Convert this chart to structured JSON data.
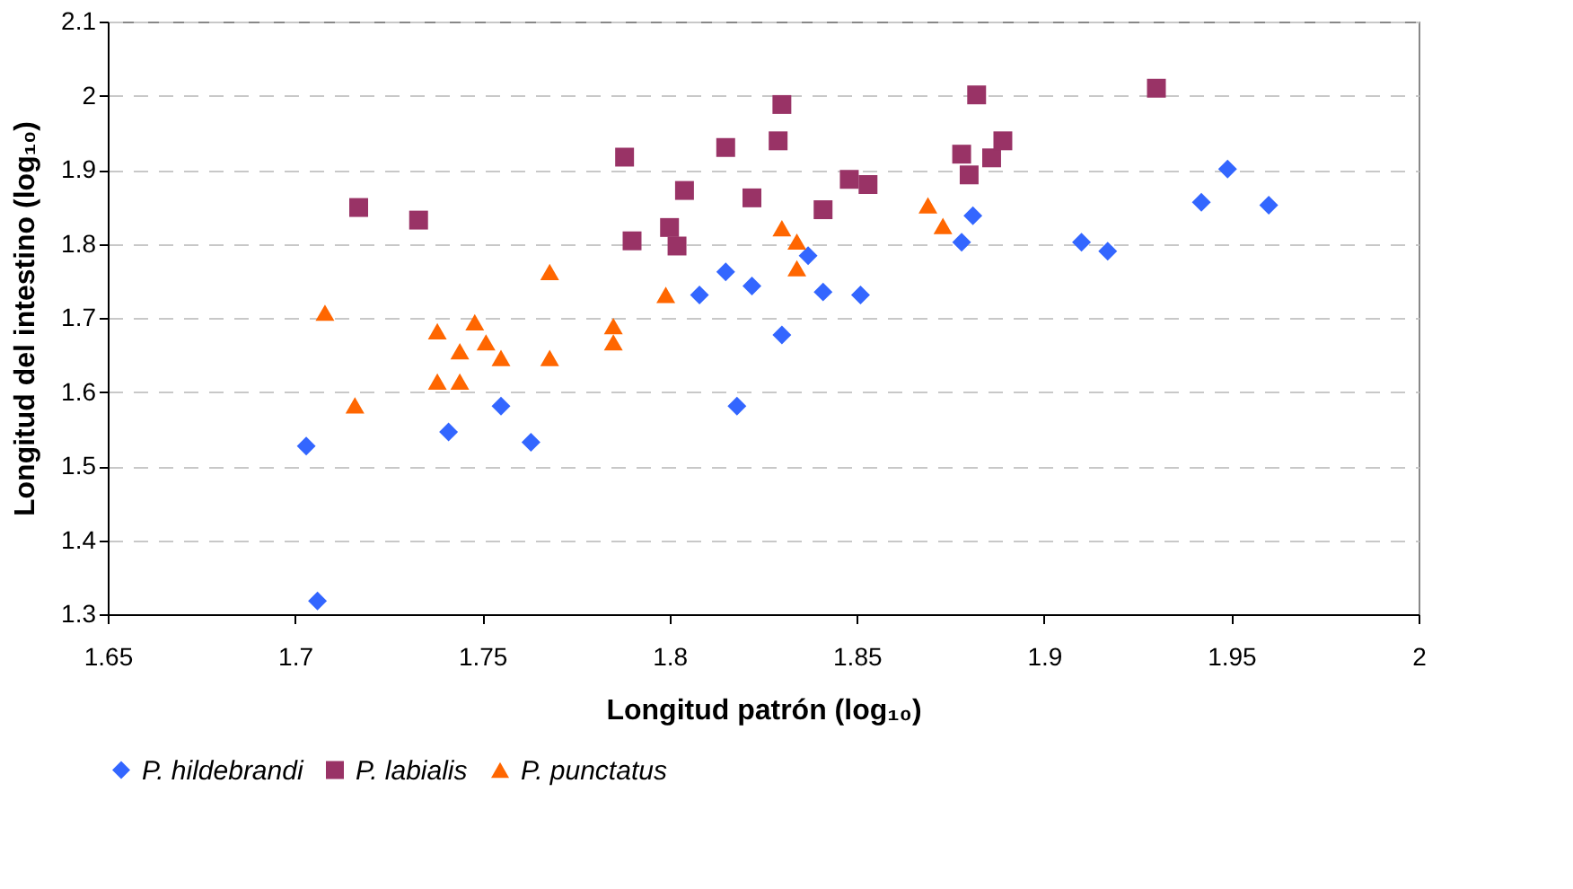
{
  "chart_data": {
    "type": "scatter",
    "xlabel": "Longitud patrón (log₁₀)",
    "ylabel": "Longitud del intestino (log₁₀)",
    "xlim": [
      1.65,
      2
    ],
    "xticks": [
      1.65,
      1.7,
      1.75,
      1.8,
      1.85,
      1.9,
      1.95,
      2
    ],
    "ylim": [
      1.3,
      2.1
    ],
    "yticks": [
      1.3,
      1.4,
      1.5,
      1.6,
      1.7,
      1.8,
      1.9,
      2,
      2.1
    ],
    "grid": "y",
    "legend": "bottom",
    "series": [
      {
        "name": "P. hildebrandi",
        "color": "#3366ff",
        "marker": "diamond",
        "x": [
          1.703,
          1.706,
          1.741,
          1.755,
          1.763,
          1.808,
          1.815,
          1.822,
          1.818,
          1.83,
          1.837,
          1.841,
          1.851,
          1.878,
          1.881,
          1.91,
          1.917,
          1.942,
          1.949,
          1.96
        ],
        "values": [
          1.527,
          1.318,
          1.546,
          1.581,
          1.532,
          1.731,
          1.762,
          1.743,
          1.581,
          1.677,
          1.784,
          1.735,
          1.731,
          1.802,
          1.838,
          1.802,
          1.79,
          1.856,
          1.901,
          1.852
        ]
      },
      {
        "name": "P. labialis",
        "color": "#993366",
        "marker": "square",
        "x": [
          1.717,
          1.733,
          1.788,
          1.79,
          1.8,
          1.802,
          1.804,
          1.815,
          1.822,
          1.829,
          1.83,
          1.841,
          1.848,
          1.853,
          1.878,
          1.88,
          1.882,
          1.886,
          1.889,
          1.93
        ],
        "values": [
          1.849,
          1.832,
          1.917,
          1.804,
          1.822,
          1.797,
          1.872,
          1.93,
          1.862,
          1.939,
          1.988,
          1.846,
          1.887,
          1.88,
          1.921,
          1.893,
          2.001,
          1.916,
          1.939,
          2.01
        ]
      },
      {
        "name": "P. punctatus",
        "color": "#ff6600",
        "marker": "triangle",
        "x": [
          1.708,
          1.716,
          1.738,
          1.738,
          1.744,
          1.744,
          1.748,
          1.751,
          1.755,
          1.768,
          1.768,
          1.785,
          1.785,
          1.799,
          1.83,
          1.834,
          1.834,
          1.869,
          1.873
        ],
        "values": [
          1.707,
          1.582,
          1.682,
          1.614,
          1.655,
          1.614,
          1.694,
          1.667,
          1.646,
          1.762,
          1.646,
          1.689,
          1.667,
          1.731,
          1.821,
          1.803,
          1.767,
          1.852,
          1.824
        ]
      }
    ]
  }
}
